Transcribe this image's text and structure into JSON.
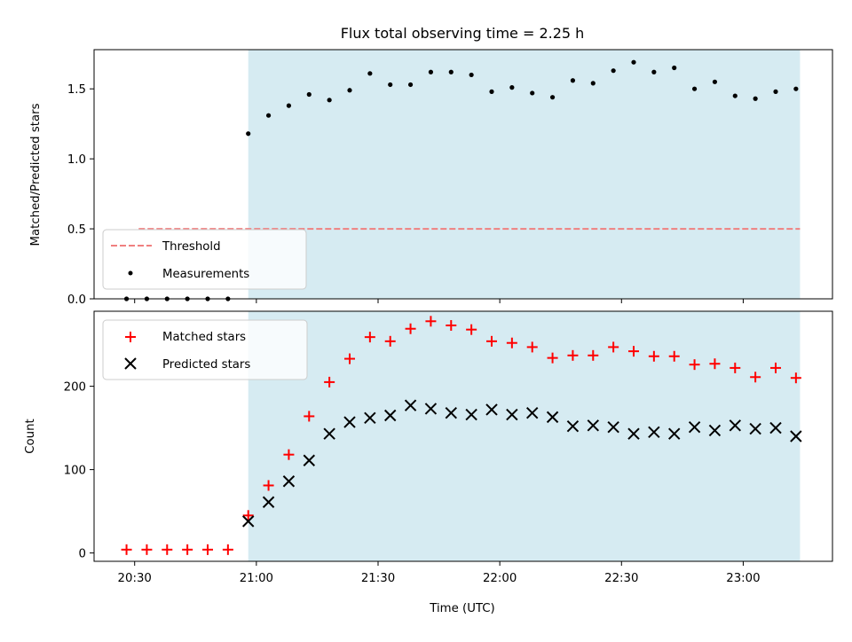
{
  "chart_data": [
    {
      "type": "scatter",
      "title": "Flux total observing time = 2.25 h",
      "xlabel": "",
      "ylabel": "Matched/Predicted stars",
      "ylim": [
        0,
        1.78
      ],
      "yticks": [
        "0.0",
        "0.5",
        "1.0",
        "1.5"
      ],
      "shaded_span": [
        "20:58",
        "23:14"
      ],
      "legend": "lower-left",
      "threshold": {
        "name": "Threshold",
        "value": 0.5,
        "x": [
          "20:31",
          "23:14"
        ]
      },
      "series": [
        {
          "name": "Measurements",
          "x": [
            "20:28",
            "20:33",
            "20:38",
            "20:43",
            "20:48",
            "20:53",
            "20:58",
            "21:03",
            "21:08",
            "21:13",
            "21:18",
            "21:23",
            "21:28",
            "21:33",
            "21:38",
            "21:43",
            "21:48",
            "21:53",
            "21:58",
            "22:03",
            "22:08",
            "22:13",
            "22:18",
            "22:23",
            "22:28",
            "22:33",
            "22:38",
            "22:43",
            "22:48",
            "22:53",
            "22:58",
            "23:03",
            "23:08",
            "23:13"
          ],
          "values": [
            0,
            0,
            0,
            0,
            0,
            0,
            1.18,
            1.31,
            1.38,
            1.46,
            1.42,
            1.49,
            1.61,
            1.53,
            1.53,
            1.62,
            1.62,
            1.6,
            1.48,
            1.51,
            1.47,
            1.44,
            1.56,
            1.54,
            1.63,
            1.69,
            1.62,
            1.65,
            1.5,
            1.55,
            1.45,
            1.43,
            1.48,
            1.5
          ]
        }
      ]
    },
    {
      "type": "scatter",
      "title": "",
      "xlabel": "Time (UTC)",
      "ylabel": "Count",
      "ylim": [
        -10,
        290
      ],
      "yticks": [
        "0",
        "100",
        "200"
      ],
      "xticks": [
        "20:30",
        "21:00",
        "21:30",
        "22:00",
        "22:30",
        "23:00"
      ],
      "xlim": [
        "20:20",
        "23:22"
      ],
      "shaded_span": [
        "20:58",
        "23:14"
      ],
      "legend": "top-left",
      "series": [
        {
          "name": "Matched stars",
          "color": "#ff0000",
          "marker": "plus",
          "x": [
            "20:28",
            "20:33",
            "20:38",
            "20:43",
            "20:48",
            "20:53",
            "20:58",
            "21:03",
            "21:08",
            "21:13",
            "21:18",
            "21:23",
            "21:28",
            "21:33",
            "21:38",
            "21:43",
            "21:48",
            "21:53",
            "21:58",
            "22:03",
            "22:08",
            "22:13",
            "22:18",
            "22:23",
            "22:28",
            "22:33",
            "22:38",
            "22:43",
            "22:48",
            "22:53",
            "22:58",
            "23:03",
            "23:08",
            "23:13"
          ],
          "values": [
            4,
            4,
            4,
            4,
            4,
            4,
            45,
            81,
            118,
            164,
            205,
            233,
            259,
            254,
            269,
            278,
            273,
            268,
            254,
            252,
            247,
            234,
            237,
            237,
            247,
            242,
            236,
            236,
            226,
            227,
            222,
            211,
            222,
            210
          ]
        },
        {
          "name": "Predicted stars",
          "color": "#000000",
          "marker": "x",
          "x": [
            "20:58",
            "21:03",
            "21:08",
            "21:13",
            "21:18",
            "21:23",
            "21:28",
            "21:33",
            "21:38",
            "21:43",
            "21:48",
            "21:53",
            "21:58",
            "22:03",
            "22:08",
            "22:13",
            "22:18",
            "22:23",
            "22:28",
            "22:33",
            "22:38",
            "22:43",
            "22:48",
            "22:53",
            "22:58",
            "23:03",
            "23:08",
            "23:13"
          ],
          "values": [
            38,
            61,
            86,
            111,
            143,
            157,
            162,
            165,
            177,
            173,
            168,
            166,
            172,
            166,
            168,
            163,
            152,
            153,
            151,
            143,
            145,
            143,
            151,
            147,
            153,
            149,
            150,
            140
          ]
        }
      ]
    }
  ],
  "colors": {
    "shade": "#add8e6",
    "threshold": "#f08080",
    "measurement": "#000000",
    "matched": "#ff0000",
    "predicted": "#000000"
  }
}
